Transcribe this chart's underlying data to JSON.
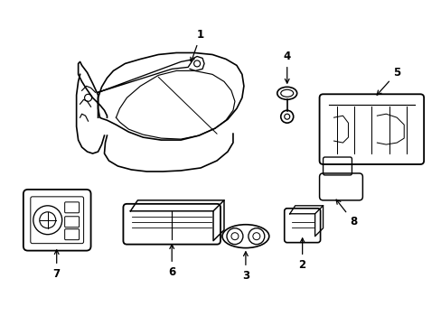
{
  "background_color": "#ffffff",
  "line_color": "#000000",
  "line_width": 1.2,
  "label_fontsize": 8.5,
  "figsize": [
    4.89,
    3.6
  ],
  "dpi": 100
}
